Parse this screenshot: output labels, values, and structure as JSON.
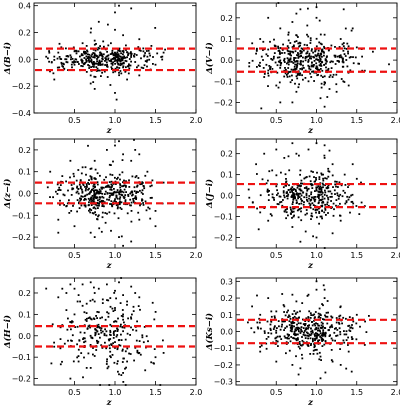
{
  "chart_data": [
    {
      "type": "scatter",
      "xlabel": "z",
      "ylabel": "Δ(B−i)",
      "xlim": [
        0,
        2.0
      ],
      "ylim": [
        -0.4,
        0.42
      ],
      "yticks": [
        -0.4,
        -0.2,
        0.0,
        0.2,
        0.4
      ],
      "ytick_labels": [
        "−0.4",
        "−0.2",
        "0.0",
        "0.2",
        "0.4"
      ],
      "xticks": [
        0.5,
        1.0,
        1.5,
        2.0
      ],
      "xtick_labels": [
        "0.5",
        "1.0",
        "1.5",
        "2.0"
      ],
      "hlines": [
        0.08,
        -0.08
      ],
      "x": [
        0.15,
        0.22,
        0.3,
        0.35,
        0.4,
        0.45,
        0.5,
        0.55,
        0.6,
        0.65,
        0.7,
        0.75,
        0.8,
        0.85,
        0.95,
        1.0,
        1.05,
        1.1,
        1.15,
        1.2,
        1.25,
        1.3,
        1.4,
        1.5,
        0.7,
        0.75,
        0.8,
        1.0,
        1.02,
        1.05,
        1.1,
        1.15,
        1.0,
        1.05,
        0.9,
        1.3,
        1.6,
        0.25,
        0.6,
        1.45,
        1.55,
        0.4,
        0.5,
        0.7,
        0.75,
        1.0,
        1.2,
        1.35
      ],
      "y": [
        0.02,
        -0.02,
        0.05,
        -0.05,
        0.0,
        0.03,
        -0.04,
        0.06,
        -0.08,
        0.1,
        -0.12,
        0.04,
        -0.03,
        0.02,
        0.12,
        0.05,
        0.0,
        -0.06,
        0.08,
        0.03,
        -0.02,
        0.15,
        0.02,
        -0.04,
        0.2,
        -0.22,
        0.28,
        0.35,
        -0.3,
        0.4,
        0.18,
        -0.15,
        0.22,
        -0.1,
        -0.05,
        -0.12,
        0.05,
        -0.15,
        0.12,
        0.1,
        -0.08,
        -0.02,
        0.06,
        -0.18,
        0.14,
        -0.25,
        0.38,
        0.06
      ],
      "n_background": 360,
      "background_spread": 0.05
    },
    {
      "type": "scatter",
      "xlabel": "z",
      "ylabel": "Δ(V−i)",
      "xlim": [
        0,
        2.0
      ],
      "ylim": [
        -0.25,
        0.27
      ],
      "yticks": [
        -0.2,
        -0.1,
        0.0,
        0.1,
        0.2
      ],
      "ytick_labels": [
        "−0.2",
        "−0.1",
        "0.0",
        "0.1",
        "0.2"
      ],
      "xticks": [
        0.5,
        1.0,
        1.5,
        2.0
      ],
      "xtick_labels": [
        "0.5",
        "1.0",
        "1.5",
        "2.0"
      ],
      "hlines": [
        0.055,
        -0.055
      ],
      "x": [
        0.3,
        0.35,
        0.4,
        0.5,
        0.55,
        0.6,
        0.7,
        0.75,
        0.8,
        0.9,
        1.0,
        1.05,
        1.1,
        1.2,
        1.3,
        1.4,
        1.5,
        1.6,
        0.7,
        0.75,
        1.0,
        1.1,
        0.4,
        0.8,
        1.25,
        1.7,
        1.9,
        0.55,
        0.65,
        1.45
      ],
      "y": [
        0.1,
        -0.08,
        0.05,
        -0.12,
        0.15,
        -0.05,
        0.18,
        -0.15,
        0.08,
        -0.1,
        0.2,
        -0.18,
        0.12,
        -0.08,
        0.1,
        -0.12,
        0.06,
        -0.05,
        -0.2,
        0.22,
        0.25,
        -0.22,
        0.2,
        0.24,
        -0.15,
        0.04,
        -0.02,
        -0.2,
        0.12,
        0.15
      ],
      "n_background": 420,
      "background_spread": 0.05
    },
    {
      "type": "scatter",
      "xlabel": "z",
      "ylabel": "Δ(z−i)",
      "xlim": [
        0,
        2.0
      ],
      "ylim": [
        -0.25,
        0.25
      ],
      "yticks": [
        -0.2,
        -0.1,
        0.0,
        0.1,
        0.2
      ],
      "ytick_labels": [
        "−0.2",
        "−0.1",
        "0.0",
        "0.1",
        "0.2"
      ],
      "xticks": [
        0.5,
        1.0,
        1.5,
        2.0
      ],
      "xtick_labels": [
        "0.5",
        "1.0",
        "1.5",
        "2.0"
      ],
      "hlines": [
        0.05,
        -0.045
      ],
      "x": [
        0.2,
        0.3,
        0.35,
        0.5,
        0.6,
        0.7,
        0.75,
        0.8,
        0.9,
        1.0,
        1.05,
        1.1,
        1.2,
        1.25,
        1.3,
        1.4,
        1.5,
        1.6,
        1.05,
        1.1,
        1.2,
        0.3,
        0.45,
        0.75,
        1.3,
        1.5
      ],
      "y": [
        0.1,
        -0.12,
        0.08,
        -0.15,
        0.12,
        -0.18,
        0.15,
        -0.1,
        0.2,
        0.22,
        -0.2,
        0.18,
        -0.22,
        0.2,
        -0.12,
        0.1,
        -0.08,
        0.05,
        0.24,
        -0.24,
        0.15,
        -0.18,
        0.15,
        -0.2,
        0.18,
        -0.15
      ],
      "n_background": 430,
      "background_spread": 0.05
    },
    {
      "type": "scatter",
      "xlabel": "z",
      "ylabel": "Δ(J−i)",
      "xlim": [
        0,
        2.0
      ],
      "ylim": [
        -0.25,
        0.27
      ],
      "yticks": [
        -0.2,
        -0.1,
        0.0,
        0.1,
        0.2
      ],
      "ytick_labels": [
        "−0.2",
        "−0.1",
        "0.0",
        "0.1",
        "0.2"
      ],
      "xticks": [
        0.5,
        1.0,
        1.5,
        2.0
      ],
      "xtick_labels": [
        "0.5",
        "1.0",
        "1.5",
        "2.0"
      ],
      "hlines": [
        0.055,
        -0.055
      ],
      "x": [
        0.25,
        0.35,
        0.4,
        0.5,
        0.6,
        0.7,
        0.75,
        0.8,
        0.9,
        1.0,
        1.05,
        1.1,
        1.2,
        1.3,
        1.35,
        1.5,
        1.6,
        0.8,
        1.0,
        1.1,
        0.45,
        1.2,
        0.7,
        0.3,
        1.45
      ],
      "y": [
        0.15,
        0.2,
        -0.12,
        0.22,
        0.18,
        -0.15,
        0.2,
        0.12,
        0.22,
        0.25,
        -0.1,
        0.18,
        0.15,
        -0.12,
        0.1,
        0.08,
        -0.05,
        -0.22,
        -0.2,
        0.24,
        0.12,
        -0.18,
        0.25,
        -0.08,
        0.15
      ],
      "n_background": 400,
      "background_spread": 0.055
    },
    {
      "type": "scatter",
      "xlabel": "z",
      "ylabel": "Δ(H−i)",
      "xlim": [
        0,
        2.0
      ],
      "ylim": [
        -0.23,
        0.27
      ],
      "yticks": [
        -0.2,
        -0.1,
        0.0,
        0.1,
        0.2
      ],
      "ytick_labels": [
        "−0.2",
        "−0.1",
        "0.0",
        "0.1",
        "0.2"
      ],
      "xticks": [
        0.5,
        1.0,
        1.5,
        2.0
      ],
      "xtick_labels": [
        "0.5",
        "1.0",
        "1.5",
        "2.0"
      ],
      "hlines": [
        0.045,
        -0.05
      ],
      "x": [
        0.3,
        0.35,
        0.4,
        0.45,
        0.5,
        0.55,
        0.6,
        0.65,
        0.7,
        0.75,
        0.8,
        0.85,
        0.9,
        1.0,
        1.05,
        1.1,
        1.15,
        1.2,
        1.25,
        1.3,
        0.4,
        0.5,
        0.6,
        0.7,
        0.75,
        0.8,
        1.0,
        1.1,
        1.2,
        0.55,
        0.65,
        0.95,
        1.05,
        1.15,
        1.3,
        1.4,
        0.45,
        0.7,
        0.9,
        1.5,
        1.6,
        0.35,
        0.85
      ],
      "y": [
        0.18,
        0.22,
        0.2,
        0.24,
        0.22,
        0.19,
        0.24,
        0.15,
        0.25,
        0.2,
        0.22,
        0.17,
        0.24,
        0.21,
        0.25,
        0.19,
        0.16,
        0.23,
        0.2,
        0.18,
        0.12,
        0.1,
        0.14,
        0.08,
        0.16,
        0.11,
        0.13,
        0.1,
        0.08,
        -0.12,
        -0.15,
        -0.1,
        -0.18,
        -0.12,
        -0.08,
        -0.05,
        -0.2,
        -0.15,
        -0.12,
        -0.1,
        -0.08,
        0.05,
        0.02
      ],
      "n_background": 260,
      "background_spread": 0.08
    },
    {
      "type": "scatter",
      "xlabel": "z",
      "ylabel": "Δ(Ks−i)",
      "xlim": [
        0,
        2.0
      ],
      "ylim": [
        -0.32,
        0.32
      ],
      "yticks": [
        -0.3,
        -0.2,
        -0.1,
        0.0,
        0.1,
        0.2,
        0.3
      ],
      "ytick_labels": [
        "−0.3",
        "−0.2",
        "−0.1",
        "0.0",
        "0.1",
        "0.2",
        "0.3"
      ],
      "xticks": [
        0.5,
        1.0,
        1.5,
        2.0
      ],
      "xtick_labels": [
        "0.5",
        "1.0",
        "1.5",
        "2.0"
      ],
      "hlines": [
        0.07,
        -0.07
      ],
      "x": [
        0.2,
        0.3,
        0.4,
        0.5,
        0.6,
        0.7,
        0.75,
        0.8,
        0.9,
        1.0,
        1.05,
        1.1,
        1.2,
        1.3,
        1.4,
        1.5,
        1.6,
        0.5,
        0.7,
        1.0,
        1.05,
        1.1,
        0.3,
        1.3,
        1.45
      ],
      "y": [
        0.15,
        -0.12,
        0.2,
        -0.18,
        0.15,
        -0.2,
        0.18,
        -0.22,
        0.22,
        0.25,
        -0.15,
        0.2,
        -0.18,
        0.15,
        -0.12,
        0.1,
        -0.08,
        0.12,
        0.22,
        0.3,
        -0.28,
        0.25,
        0.1,
        -0.2,
        0.08
      ],
      "n_background": 420,
      "background_spread": 0.065
    }
  ]
}
